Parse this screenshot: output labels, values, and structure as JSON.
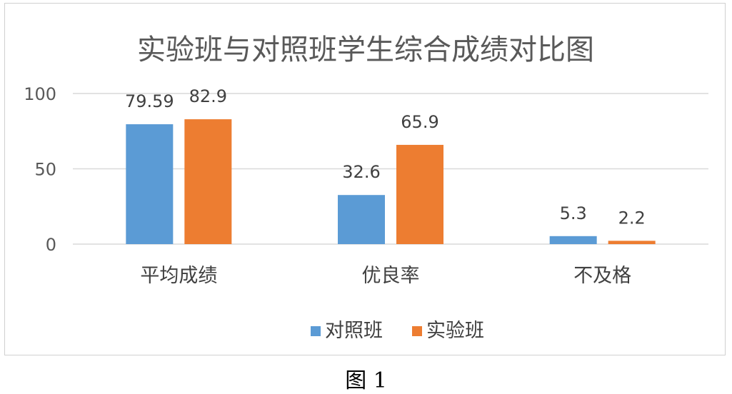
{
  "chart_data": {
    "type": "bar",
    "title": "实验班与对照班学生综合成绩对比图",
    "categories": [
      "平均成绩",
      "优良率",
      "不及格"
    ],
    "series": [
      {
        "name": "对照班",
        "color": "#5b9bd5",
        "values": [
          79.59,
          32.6,
          5.3
        ]
      },
      {
        "name": "实验班",
        "color": "#ed7d31",
        "values": [
          82.9,
          65.9,
          2.2
        ]
      }
    ],
    "data_labels": [
      [
        "79.59",
        "32.6",
        "5.3"
      ],
      [
        "82.9",
        "65.9",
        "2.2"
      ]
    ],
    "ylim": [
      0,
      100
    ],
    "yticks": [
      "0",
      "50",
      "100"
    ],
    "grid": true,
    "legend_position": "bottom"
  },
  "caption": "图 1"
}
